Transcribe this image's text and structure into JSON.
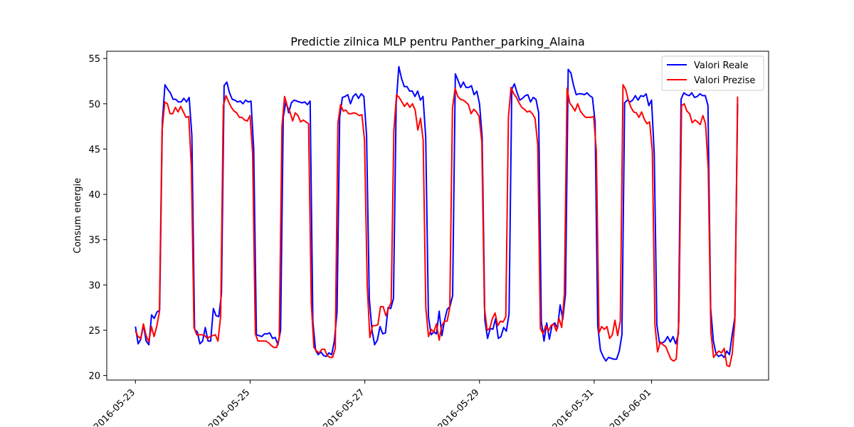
{
  "chart_data": {
    "type": "line",
    "title": "Predictie zilnica MLP pentru Panther_parking_Alaina",
    "xlabel": "",
    "ylabel": "Consum energie",
    "x_start": "2016-05-23",
    "x_end": "2016-06-02 12:00",
    "xlim": [
      "2016-05-22 12:00",
      "2016-06-03 01:00"
    ],
    "ylim": [
      19.5,
      55.8
    ],
    "yticks": [
      20,
      25,
      30,
      35,
      40,
      45,
      50,
      55
    ],
    "xticks": [
      "2016-05-23",
      "2016-05-25",
      "2016-05-27",
      "2016-05-29",
      "2016-05-31",
      "2016-06-01"
    ],
    "grid": false,
    "legend_position": "top-right",
    "colors": {
      "real": "#0000ff",
      "pred": "#ff0000"
    },
    "series": [
      {
        "name": "Valori Reale",
        "values": [
          25.4,
          23.5,
          24.0,
          25.6,
          23.8,
          23.4,
          26.7,
          26.3,
          27.0,
          27.2,
          48.0,
          52.1,
          51.6,
          51.2,
          50.5,
          50.5,
          50.2,
          50.2,
          50.6,
          50.2,
          50.7,
          46.5,
          25.1,
          24.8,
          23.5,
          23.8,
          25.3,
          23.8,
          23.8,
          27.4,
          26.6,
          26.5,
          29.0,
          52.0,
          52.4,
          51.2,
          50.5,
          50.4,
          50.2,
          50.3,
          50.0,
          50.4,
          50.2,
          50.3,
          45.0,
          24.5,
          24.4,
          24.3,
          24.6,
          24.6,
          24.7,
          24.1,
          24.2,
          23.4,
          25.0,
          48.5,
          50.3,
          49.0,
          50.1,
          50.4,
          50.3,
          50.2,
          50.1,
          50.2,
          49.9,
          50.3,
          26.0,
          22.8,
          22.3,
          22.6,
          22.2,
          22.1,
          22.5,
          22.3,
          23.8,
          27.0,
          48.5,
          50.7,
          50.8,
          51.0,
          50.0,
          50.8,
          51.1,
          50.6,
          51.1,
          50.8,
          46.5,
          28.5,
          25.0,
          23.4,
          23.9,
          25.4,
          24.6,
          24.7,
          27.5,
          27.4,
          28.5,
          50.0,
          54.1,
          52.8,
          51.9,
          51.9,
          51.4,
          51.4,
          50.8,
          51.4,
          50.4,
          50.8,
          46.3,
          26.5,
          24.5,
          24.8,
          24.6,
          27.1,
          24.4,
          26.1,
          27.3,
          27.6,
          28.8,
          53.3,
          52.6,
          51.8,
          52.4,
          51.8,
          51.8,
          52.0,
          51.0,
          51.4,
          50.0,
          46.3,
          26.1,
          24.1,
          25.2,
          25.1,
          26.3,
          24.1,
          24.3,
          25.3,
          24.9,
          26.8,
          51.6,
          52.2,
          51.2,
          50.4,
          50.6,
          50.9,
          51.0,
          50.2,
          50.7,
          50.5,
          49.0,
          26.0,
          23.8,
          25.8,
          24.0,
          25.6,
          25.8,
          25.2,
          27.8,
          26.2,
          29.0,
          53.8,
          53.4,
          52.0,
          51.0,
          51.1,
          51.1,
          51.0,
          51.2,
          50.9,
          50.7,
          48.0,
          25.5,
          22.8,
          22.1,
          21.6,
          22.0,
          21.9,
          21.8,
          21.8,
          22.7,
          24.5,
          50.1,
          50.4,
          50.2,
          50.4,
          50.9,
          50.4,
          50.9,
          50.8,
          51.1,
          49.8,
          50.4,
          44.5,
          25.6,
          23.5,
          23.6,
          23.8,
          24.3,
          23.7,
          24.3,
          23.5,
          24.6,
          50.5,
          51.2,
          51.0,
          50.9,
          51.2,
          50.7,
          50.8,
          51.1,
          50.9,
          50.9,
          49.8,
          27.4,
          23.8,
          22.4,
          22.1,
          22.3,
          22.0,
          22.7,
          22.3,
          24.5,
          26.4,
          50.0
        ],
        "color": "#0000ff"
      },
      {
        "name": "Valori Prezise",
        "values": [
          24.9,
          24.3,
          24.1,
          25.7,
          24.4,
          23.7,
          25.4,
          24.3,
          25.4,
          27.0,
          47.0,
          50.2,
          50.0,
          48.9,
          48.9,
          49.6,
          49.1,
          49.7,
          49.1,
          48.5,
          48.6,
          43.0,
          25.3,
          24.5,
          24.5,
          24.5,
          24.4,
          24.1,
          24.3,
          24.4,
          24.5,
          23.8,
          26.6,
          49.8,
          50.9,
          50.2,
          49.6,
          49.2,
          49.0,
          48.5,
          48.5,
          48.2,
          48.1,
          48.7,
          44.5,
          24.6,
          23.8,
          23.8,
          23.8,
          23.8,
          23.6,
          23.3,
          23.1,
          23.1,
          24.2,
          47.5,
          50.8,
          49.7,
          49.1,
          48.1,
          49.0,
          48.7,
          48.0,
          48.2,
          48.0,
          47.8,
          28.0,
          23.1,
          22.7,
          22.5,
          22.9,
          22.9,
          22.2,
          22.0,
          22.0,
          23.0,
          47.8,
          49.9,
          49.2,
          49.3,
          48.9,
          48.9,
          49.0,
          48.9,
          48.7,
          48.8,
          46.0,
          30.0,
          24.2,
          25.5,
          25.5,
          25.6,
          27.6,
          27.6,
          26.6,
          27.4,
          28.1,
          47.0,
          51.0,
          50.7,
          50.2,
          49.7,
          50.1,
          49.6,
          50.0,
          49.3,
          47.1,
          48.4,
          46.0,
          27.5,
          24.3,
          25.1,
          24.8,
          25.7,
          23.9,
          25.5,
          26.0,
          26.0,
          27.5,
          49.5,
          51.7,
          50.8,
          50.5,
          50.4,
          50.2,
          49.9,
          48.9,
          49.4,
          49.1,
          48.6,
          45.8,
          27.5,
          25.0,
          25.2,
          26.3,
          26.9,
          25.5,
          26.0,
          25.9,
          26.5,
          48.5,
          51.8,
          51.1,
          50.7,
          50.1,
          49.6,
          49.4,
          49.1,
          49.2,
          48.9,
          48.4,
          45.5,
          25.2,
          24.6,
          25.5,
          24.9,
          25.5,
          25.7,
          24.9,
          26.3,
          25.3,
          29.0,
          51.7,
          50.1,
          49.7,
          49.2,
          50.0,
          49.2,
          48.8,
          48.5,
          48.5,
          48.5,
          48.6,
          44.8,
          24.7,
          25.4,
          25.1,
          25.4,
          24.1,
          24.5,
          26.1,
          24.4,
          26.0,
          52.1,
          51.6,
          50.4,
          49.6,
          49.1,
          49.0,
          48.5,
          49.1,
          48.3,
          47.8,
          48.0,
          44.8,
          25.6,
          22.6,
          23.7,
          23.4,
          23.2,
          22.5,
          21.8,
          21.6,
          21.8,
          26.0,
          49.8,
          50.0,
          49.2,
          48.9,
          47.9,
          48.2,
          48.0,
          47.7,
          48.7,
          47.8,
          42.8,
          24.8,
          22.0,
          22.4,
          22.7,
          22.5,
          23.0,
          21.1,
          21.0,
          22.4,
          26.0,
          50.8
        ],
        "color": "#ff0000"
      }
    ]
  }
}
